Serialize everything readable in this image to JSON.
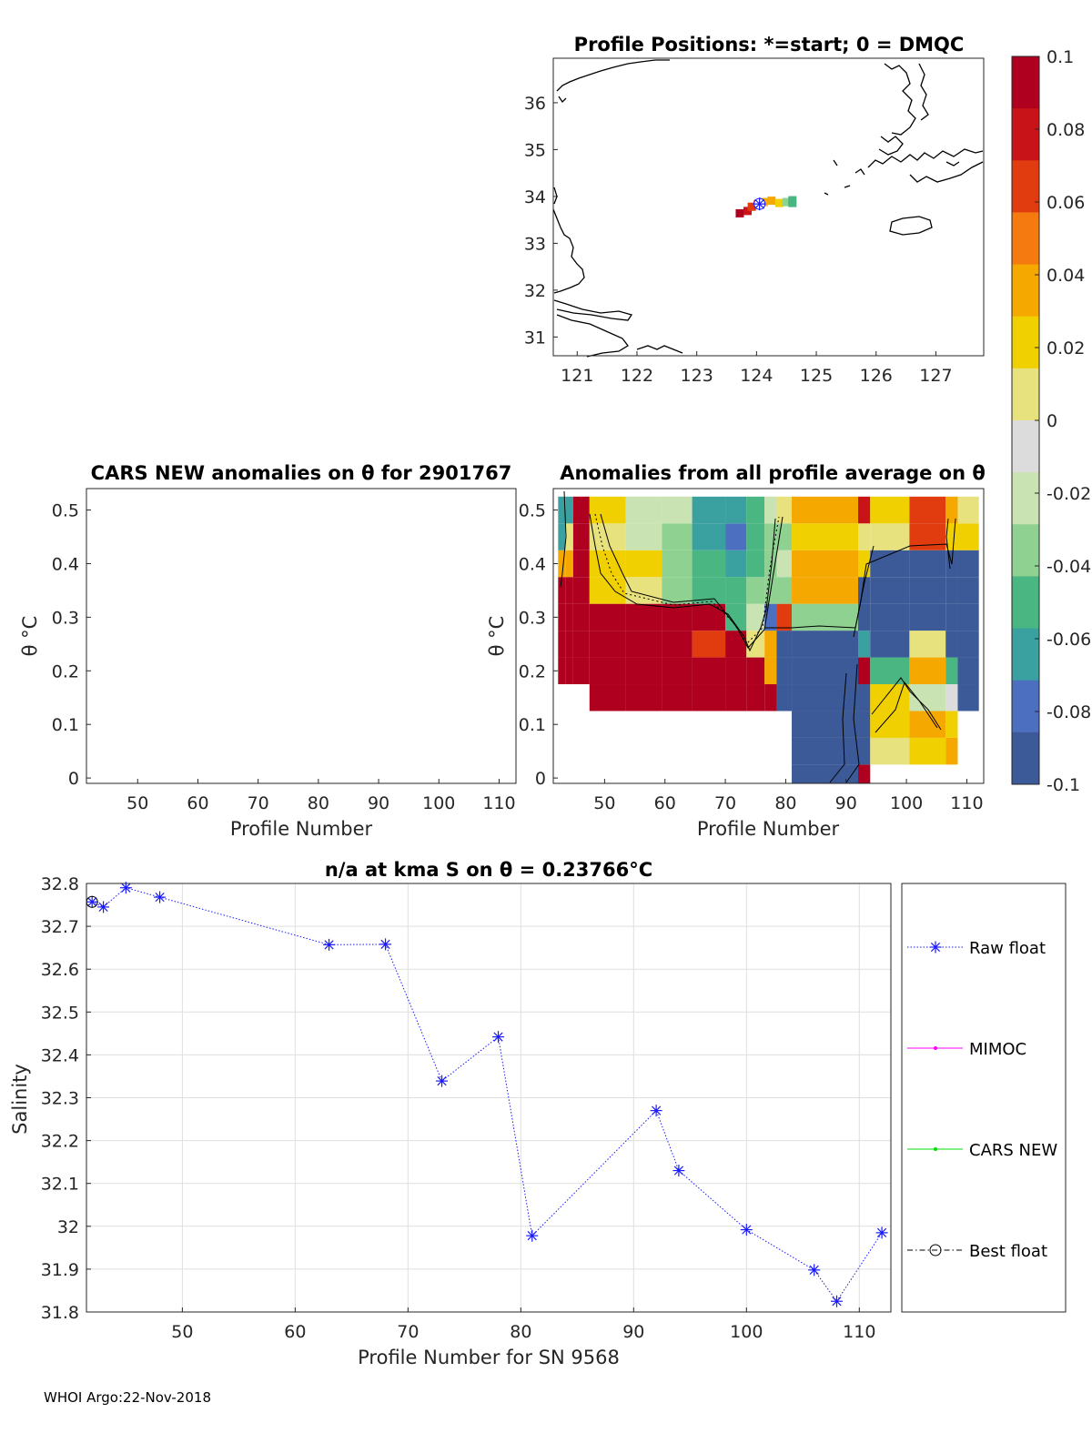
{
  "colors": {
    "raw_float": "#1a1aff",
    "mimoc": "#ff00ff",
    "cars": "#00dd00",
    "best": "#000000",
    "coast": "#000000"
  },
  "footer": {
    "text": "WHOI Argo:22-Nov-2018"
  },
  "chart_data": [
    {
      "id": "map",
      "type": "scatter",
      "title": "Profile Positions: *=start; 0 = DMQC",
      "xlabel": "",
      "ylabel": "",
      "xlim": [
        120.6,
        127.8
      ],
      "ylim": [
        30.6,
        36.95
      ],
      "xticks": [
        "121",
        "122",
        "123",
        "124",
        "125",
        "126",
        "127"
      ],
      "yticks": [
        "31",
        "32",
        "33",
        "34",
        "35",
        "36"
      ],
      "points": [
        {
          "lon": 123.72,
          "lat": 33.64,
          "anomaly": 0.095
        },
        {
          "lon": 123.85,
          "lat": 33.69,
          "anomaly": 0.085
        },
        {
          "lon": 123.92,
          "lat": 33.78,
          "anomaly": 0.07
        },
        {
          "lon": 124.02,
          "lat": 33.83,
          "anomaly": 0.06
        },
        {
          "lon": 124.12,
          "lat": 33.88,
          "anomaly": 0.03
        },
        {
          "lon": 124.25,
          "lat": 33.91,
          "anomaly": 0.04
        },
        {
          "lon": 124.38,
          "lat": 33.86,
          "anomaly": 0.02
        },
        {
          "lon": 124.5,
          "lat": 33.88,
          "anomaly": -0.04
        },
        {
          "lon": 124.6,
          "lat": 33.92,
          "anomaly": -0.05
        },
        {
          "lon": 124.6,
          "lat": 33.86,
          "anomaly": -0.045
        }
      ],
      "start": {
        "lon": 124.05,
        "lat": 33.84
      }
    },
    {
      "id": "colorbar",
      "type": "heatmap",
      "title": "",
      "range": [
        -0.1,
        0.1
      ],
      "ticks": [
        "0.1",
        "0.08",
        "0.06",
        "0.04",
        "0.02",
        "0",
        "-0.02",
        "-0.04",
        "-0.06",
        "-0.08",
        "-0.1"
      ],
      "colormap": [
        "#3d5a98",
        "#4c6fc0",
        "#3aa1a0",
        "#4ab682",
        "#8ed190",
        "#c9e3b2",
        "#dcdcdc",
        "#e8e27e",
        "#f0d000",
        "#f5a800",
        "#f57a10",
        "#e03c10",
        "#c81418",
        "#b00020"
      ]
    },
    {
      "id": "anom-left",
      "type": "heatmap",
      "title": "CARS NEW anomalies on θ for 2901767",
      "xlabel": "Profile Number",
      "ylabel": "θ °C",
      "xlim": [
        41.5,
        112.8
      ],
      "ylim": [
        -0.01,
        0.54
      ],
      "xticks": [
        "50",
        "60",
        "70",
        "80",
        "90",
        "100",
        "110"
      ],
      "yticks": [
        "0",
        "0.1",
        "0.2",
        "0.3",
        "0.4",
        "0.5"
      ],
      "cells": []
    },
    {
      "id": "anom-right",
      "type": "heatmap",
      "title": "Anomalies from all profile average on θ",
      "xlabel": "Profile Number",
      "ylabel": "θ °C",
      "xlim": [
        41.5,
        112.8
      ],
      "ylim": [
        -0.01,
        0.54
      ],
      "xticks": [
        "50",
        "60",
        "70",
        "80",
        "90",
        "100",
        "110"
      ],
      "yticks": [
        "0",
        "0.1",
        "0.2",
        "0.3",
        "0.4",
        "0.5"
      ],
      "profiles": [
        42,
        43,
        45,
        48,
        54,
        63,
        68,
        73,
        78,
        81,
        92,
        94,
        100,
        106,
        108,
        112
      ],
      "theta_levels": [
        0.0,
        0.05,
        0.1,
        0.15,
        0.2,
        0.25,
        0.3,
        0.35,
        0.4,
        0.45,
        0.5
      ],
      "columns": [
        {
          "x0": 42.3,
          "x1": 43.5,
          "vals": [
            null,
            null,
            null,
            null,
            0.095,
            0.095,
            0.095,
            0.095,
            0.03,
            -0.065,
            -0.07
          ]
        },
        {
          "x0": 43.5,
          "x1": 44.8,
          "vals": [
            null,
            null,
            null,
            null,
            0.095,
            0.095,
            0.095,
            0.095,
            0.03,
            0.005,
            -0.07
          ]
        },
        {
          "x0": 44.8,
          "x1": 47.5,
          "vals": [
            null,
            null,
            null,
            null,
            0.095,
            0.095,
            0.095,
            0.095,
            0.095,
            0.095,
            0.095
          ]
        },
        {
          "x0": 47.5,
          "x1": 53.5,
          "vals": [
            null,
            null,
            null,
            0.095,
            0.095,
            0.095,
            0.095,
            0.025,
            0.02,
            0.01,
            0.015
          ]
        },
        {
          "x0": 53.5,
          "x1": 59.5,
          "vals": [
            null,
            null,
            null,
            0.095,
            0.095,
            0.095,
            0.095,
            0.01,
            0.018,
            -0.025,
            -0.02
          ]
        },
        {
          "x0": 59.5,
          "x1": 64.5,
          "vals": [
            null,
            null,
            null,
            0.095,
            0.095,
            0.095,
            0.095,
            -0.04,
            -0.03,
            -0.035,
            -0.02
          ]
        },
        {
          "x0": 64.5,
          "x1": 70.0,
          "vals": [
            null,
            null,
            null,
            0.095,
            0.095,
            0.07,
            0.095,
            -0.05,
            -0.05,
            -0.06,
            -0.06
          ]
        },
        {
          "x0": 70.0,
          "x1": 73.5,
          "vals": [
            null,
            null,
            null,
            0.095,
            0.095,
            0.095,
            -0.045,
            -0.045,
            -0.06,
            -0.08,
            -0.06
          ]
        },
        {
          "x0": 73.5,
          "x1": 76.5,
          "vals": [
            null,
            null,
            null,
            0.095,
            0.095,
            0.005,
            -0.02,
            -0.04,
            -0.045,
            -0.045,
            -0.045
          ]
        },
        {
          "x0": 76.5,
          "x1": 78.5,
          "vals": [
            null,
            null,
            null,
            0.095,
            0.035,
            0.03,
            -0.08,
            -0.03,
            -0.04,
            -0.03,
            -0.025
          ]
        },
        {
          "x0": 78.5,
          "x1": 81.0,
          "vals": [
            null,
            null,
            null,
            -0.1,
            -0.1,
            -0.1,
            0.06,
            -0.03,
            -0.025,
            -0.03,
            0.01
          ]
        },
        {
          "x0": 81.0,
          "x1": 92.0,
          "vals": [
            -0.1,
            -0.1,
            -0.1,
            -0.1,
            -0.1,
            -0.1,
            -0.04,
            0.035,
            0.03,
            0.015,
            0.033
          ]
        },
        {
          "x0": 92.0,
          "x1": 94.0,
          "vals": [
            0.1,
            -0.1,
            -0.1,
            -0.1,
            0.1,
            -0.065,
            -0.1,
            -0.1,
            0.025,
            0.005,
            0.08
          ]
        },
        {
          "x0": 94.0,
          "x1": 100.5,
          "vals": [
            null,
            0.01,
            0.02,
            0.025,
            -0.055,
            -0.1,
            -0.1,
            -0.1,
            -0.1,
            0.01,
            0.015
          ]
        },
        {
          "x0": 100.5,
          "x1": 106.5,
          "vals": [
            null,
            0.02,
            0.03,
            -0.015,
            0.035,
            0.005,
            -0.1,
            -0.1,
            -0.1,
            0.07,
            0.07
          ]
        },
        {
          "x0": 106.5,
          "x1": 108.5,
          "vals": [
            null,
            0.03,
            0.02,
            -0.01,
            -0.05,
            -0.1,
            -0.1,
            -0.1,
            -0.1,
            0.025,
            0.035
          ]
        },
        {
          "x0": 108.5,
          "x1": 112.0,
          "vals": [
            null,
            null,
            null,
            -0.1,
            -0.1,
            -0.1,
            -0.1,
            -0.1,
            -0.1,
            0.02,
            0.008
          ]
        }
      ]
    },
    {
      "id": "salinity",
      "type": "line",
      "title": "n/a at kma S on θ = 0.23766°C",
      "xlabel": "Profile Number for SN 9568",
      "ylabel": "Salinity",
      "xlim": [
        41.5,
        112.8
      ],
      "ylim": [
        31.8,
        32.8
      ],
      "xticks": [
        "50",
        "60",
        "70",
        "80",
        "90",
        "100",
        "110"
      ],
      "yticks": [
        "31.8",
        "31.9",
        "32",
        "32.1",
        "32.2",
        "32.3",
        "32.4",
        "32.5",
        "32.6",
        "32.7",
        "32.8"
      ],
      "grid": true,
      "series": [
        {
          "name": "Raw float",
          "x": [
            42,
            43,
            45,
            48,
            63,
            68,
            73,
            78,
            81,
            92,
            94,
            100,
            106,
            108,
            112
          ],
          "y": [
            32.757,
            32.745,
            32.79,
            32.768,
            32.657,
            32.658,
            32.339,
            32.442,
            31.978,
            32.27,
            32.13,
            31.992,
            31.898,
            31.825,
            31.985
          ]
        },
        {
          "name": "MIMOC",
          "x": [],
          "y": []
        },
        {
          "name": "CARS NEW",
          "x": [],
          "y": []
        },
        {
          "name": "Best float",
          "x": [
            42
          ],
          "y": [
            32.757
          ]
        }
      ],
      "legend_placement": "right"
    }
  ]
}
